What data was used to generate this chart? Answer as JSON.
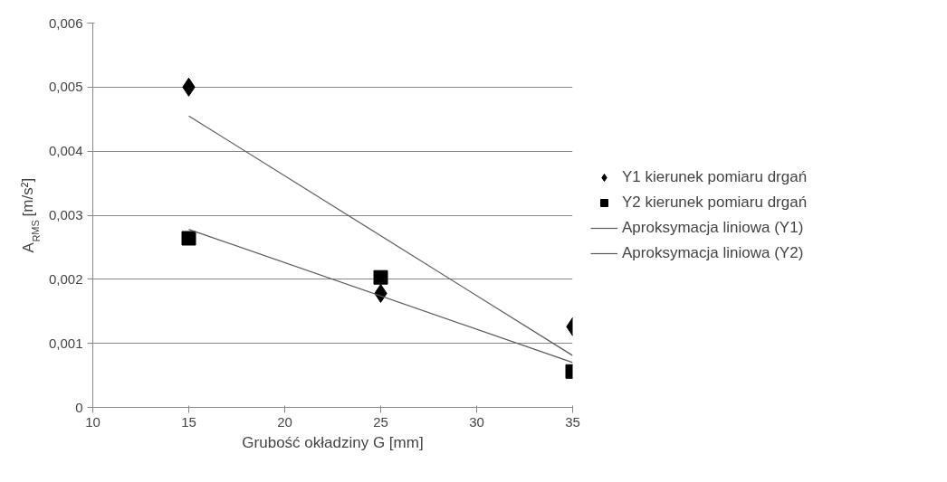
{
  "chart_data": {
    "type": "scatter",
    "xlabel": "Grubość okładziny G [mm]",
    "ylabel": "A$_{RMS}$ [m/s²]",
    "xlim": [
      10,
      35
    ],
    "xticks": [
      10,
      15,
      20,
      25,
      30,
      35
    ],
    "ylim": [
      0,
      0.006
    ],
    "yticks": [
      0,
      {
        "value": 0.001,
        "label": "0,001"
      },
      {
        "value": 0.002,
        "label": "0,002"
      },
      {
        "value": 0.003,
        "label": "0,003"
      },
      {
        "value": 0.004,
        "label": "0,004"
      },
      {
        "value": 0.005,
        "label": "0,005"
      },
      {
        "value": 0.006,
        "label": "0,006"
      }
    ],
    "grid": "y",
    "legend": "right",
    "series": [
      {
        "name": "Y1 kierunek pomiaru drgań",
        "marker": "diamond",
        "color": "#000000",
        "x": [
          15,
          25,
          35
        ],
        "values": [
          0.005,
          0.00178,
          0.00126
        ]
      },
      {
        "name": "Y2 kierunek pomiaru drgań",
        "marker": "square",
        "color": "#000000",
        "x": [
          15,
          25,
          35
        ],
        "values": [
          0.00264,
          0.00203,
          0.00056
        ]
      },
      {
        "name": "Aproksymacja liniowa (Y1)",
        "type": "line",
        "marker": "none",
        "color": "#595959",
        "x": [
          15,
          35
        ],
        "values": [
          0.00455,
          0.00081
        ]
      },
      {
        "name": "Aproksymacja liniowa (Y2)",
        "type": "line",
        "marker": "none",
        "color": "#595959",
        "x": [
          15,
          35
        ],
        "values": [
          0.00278,
          0.0007
        ]
      }
    ]
  }
}
